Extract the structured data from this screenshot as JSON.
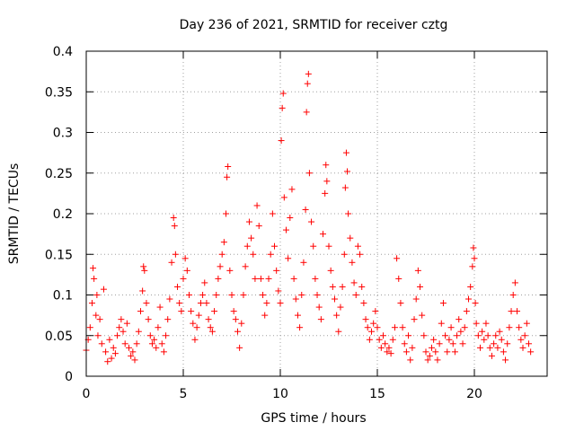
{
  "chart_data": {
    "type": "scatter",
    "title": "Day 236 of 2021, SRMTID for receiver cztg",
    "xlabel": "GPS time / hours",
    "ylabel": "SRMTID / TECUs",
    "xlim": [
      0,
      23.75
    ],
    "ylim": [
      0,
      0.4
    ],
    "x_ticks": [
      0,
      5,
      10,
      15,
      20
    ],
    "x_tick_labels": [
      "0",
      "5",
      "10",
      "15",
      "20"
    ],
    "y_ticks": [
      0,
      0.05,
      0.1,
      0.15,
      0.2,
      0.25,
      0.3,
      0.35,
      0.4
    ],
    "y_tick_labels": [
      "0",
      "0.05",
      "0.1",
      "0.15",
      "0.2",
      "0.25",
      "0.3",
      "0.35",
      "0.4"
    ],
    "grid": true,
    "marker": "plus",
    "series_color": "#ff0000",
    "series": [
      {
        "name": "SRMTID",
        "points": [
          [
            0.0,
            0.032
          ],
          [
            0.1,
            0.045
          ],
          [
            0.2,
            0.06
          ],
          [
            0.3,
            0.09
          ],
          [
            0.35,
            0.133
          ],
          [
            0.4,
            0.12
          ],
          [
            0.5,
            0.075
          ],
          [
            0.55,
            0.1
          ],
          [
            0.6,
            0.05
          ],
          [
            0.7,
            0.07
          ],
          [
            0.8,
            0.04
          ],
          [
            0.9,
            0.107
          ],
          [
            1.0,
            0.03
          ],
          [
            1.1,
            0.018
          ],
          [
            1.2,
            0.045
          ],
          [
            1.3,
            0.022
          ],
          [
            1.4,
            0.035
          ],
          [
            1.5,
            0.028
          ],
          [
            1.6,
            0.05
          ],
          [
            1.7,
            0.06
          ],
          [
            1.8,
            0.07
          ],
          [
            1.9,
            0.055
          ],
          [
            2.0,
            0.04
          ],
          [
            2.1,
            0.065
          ],
          [
            2.2,
            0.035
          ],
          [
            2.3,
            0.025
          ],
          [
            2.4,
            0.03
          ],
          [
            2.5,
            0.02
          ],
          [
            2.6,
            0.04
          ],
          [
            2.7,
            0.055
          ],
          [
            2.8,
            0.08
          ],
          [
            2.9,
            0.105
          ],
          [
            2.95,
            0.135
          ],
          [
            3.0,
            0.13
          ],
          [
            3.1,
            0.09
          ],
          [
            3.2,
            0.07
          ],
          [
            3.3,
            0.05
          ],
          [
            3.4,
            0.04
          ],
          [
            3.5,
            0.045
          ],
          [
            3.6,
            0.035
          ],
          [
            3.7,
            0.06
          ],
          [
            3.8,
            0.085
          ],
          [
            3.9,
            0.04
          ],
          [
            4.0,
            0.03
          ],
          [
            4.1,
            0.05
          ],
          [
            4.2,
            0.07
          ],
          [
            4.3,
            0.095
          ],
          [
            4.4,
            0.14
          ],
          [
            4.5,
            0.195
          ],
          [
            4.55,
            0.185
          ],
          [
            4.6,
            0.15
          ],
          [
            4.7,
            0.11
          ],
          [
            4.8,
            0.09
          ],
          [
            4.9,
            0.08
          ],
          [
            5.0,
            0.12
          ],
          [
            5.1,
            0.145
          ],
          [
            5.2,
            0.13
          ],
          [
            5.3,
            0.1
          ],
          [
            5.4,
            0.08
          ],
          [
            5.5,
            0.065
          ],
          [
            5.6,
            0.045
          ],
          [
            5.7,
            0.06
          ],
          [
            5.8,
            0.075
          ],
          [
            5.9,
            0.09
          ],
          [
            6.0,
            0.1
          ],
          [
            6.1,
            0.115
          ],
          [
            6.2,
            0.09
          ],
          [
            6.3,
            0.07
          ],
          [
            6.4,
            0.06
          ],
          [
            6.5,
            0.055
          ],
          [
            6.6,
            0.08
          ],
          [
            6.7,
            0.1
          ],
          [
            6.8,
            0.12
          ],
          [
            6.9,
            0.135
          ],
          [
            7.0,
            0.15
          ],
          [
            7.1,
            0.165
          ],
          [
            7.2,
            0.2
          ],
          [
            7.25,
            0.245
          ],
          [
            7.3,
            0.258
          ],
          [
            7.4,
            0.13
          ],
          [
            7.5,
            0.1
          ],
          [
            7.6,
            0.08
          ],
          [
            7.7,
            0.07
          ],
          [
            7.8,
            0.055
          ],
          [
            7.9,
            0.035
          ],
          [
            8.0,
            0.065
          ],
          [
            8.1,
            0.1
          ],
          [
            8.2,
            0.135
          ],
          [
            8.3,
            0.16
          ],
          [
            8.4,
            0.19
          ],
          [
            8.5,
            0.17
          ],
          [
            8.6,
            0.15
          ],
          [
            8.7,
            0.12
          ],
          [
            8.8,
            0.21
          ],
          [
            8.9,
            0.185
          ],
          [
            9.0,
            0.12
          ],
          [
            9.1,
            0.1
          ],
          [
            9.2,
            0.075
          ],
          [
            9.3,
            0.09
          ],
          [
            9.4,
            0.12
          ],
          [
            9.5,
            0.15
          ],
          [
            9.6,
            0.2
          ],
          [
            9.7,
            0.16
          ],
          [
            9.8,
            0.13
          ],
          [
            9.9,
            0.105
          ],
          [
            10.0,
            0.09
          ],
          [
            10.05,
            0.29
          ],
          [
            10.1,
            0.33
          ],
          [
            10.15,
            0.348
          ],
          [
            10.2,
            0.22
          ],
          [
            10.3,
            0.18
          ],
          [
            10.4,
            0.145
          ],
          [
            10.5,
            0.195
          ],
          [
            10.6,
            0.23
          ],
          [
            10.7,
            0.12
          ],
          [
            10.8,
            0.095
          ],
          [
            10.9,
            0.075
          ],
          [
            11.0,
            0.06
          ],
          [
            11.1,
            0.1
          ],
          [
            11.2,
            0.14
          ],
          [
            11.3,
            0.205
          ],
          [
            11.35,
            0.325
          ],
          [
            11.4,
            0.36
          ],
          [
            11.45,
            0.372
          ],
          [
            11.5,
            0.25
          ],
          [
            11.6,
            0.19
          ],
          [
            11.7,
            0.16
          ],
          [
            11.8,
            0.12
          ],
          [
            11.9,
            0.1
          ],
          [
            12.0,
            0.085
          ],
          [
            12.1,
            0.07
          ],
          [
            12.2,
            0.175
          ],
          [
            12.3,
            0.225
          ],
          [
            12.35,
            0.26
          ],
          [
            12.4,
            0.24
          ],
          [
            12.5,
            0.16
          ],
          [
            12.6,
            0.13
          ],
          [
            12.7,
            0.11
          ],
          [
            12.8,
            0.095
          ],
          [
            12.9,
            0.075
          ],
          [
            13.0,
            0.055
          ],
          [
            13.1,
            0.085
          ],
          [
            13.2,
            0.11
          ],
          [
            13.3,
            0.15
          ],
          [
            13.35,
            0.232
          ],
          [
            13.4,
            0.275
          ],
          [
            13.45,
            0.252
          ],
          [
            13.5,
            0.2
          ],
          [
            13.6,
            0.17
          ],
          [
            13.7,
            0.14
          ],
          [
            13.8,
            0.115
          ],
          [
            13.9,
            0.1
          ],
          [
            14.0,
            0.16
          ],
          [
            14.1,
            0.15
          ],
          [
            14.2,
            0.11
          ],
          [
            14.3,
            0.09
          ],
          [
            14.4,
            0.07
          ],
          [
            14.5,
            0.06
          ],
          [
            14.6,
            0.045
          ],
          [
            14.7,
            0.055
          ],
          [
            14.8,
            0.065
          ],
          [
            14.9,
            0.08
          ],
          [
            15.0,
            0.06
          ],
          [
            15.1,
            0.045
          ],
          [
            15.2,
            0.035
          ],
          [
            15.3,
            0.05
          ],
          [
            15.4,
            0.04
          ],
          [
            15.5,
            0.03
          ],
          [
            15.6,
            0.035
          ],
          [
            15.7,
            0.028
          ],
          [
            15.8,
            0.045
          ],
          [
            15.9,
            0.06
          ],
          [
            16.0,
            0.145
          ],
          [
            16.1,
            0.12
          ],
          [
            16.2,
            0.09
          ],
          [
            16.3,
            0.06
          ],
          [
            16.4,
            0.04
          ],
          [
            16.5,
            0.03
          ],
          [
            16.6,
            0.05
          ],
          [
            16.7,
            0.02
          ],
          [
            16.8,
            0.035
          ],
          [
            16.9,
            0.07
          ],
          [
            17.0,
            0.095
          ],
          [
            17.1,
            0.13
          ],
          [
            17.2,
            0.11
          ],
          [
            17.3,
            0.075
          ],
          [
            17.4,
            0.05
          ],
          [
            17.5,
            0.03
          ],
          [
            17.6,
            0.02
          ],
          [
            17.7,
            0.025
          ],
          [
            17.8,
            0.035
          ],
          [
            17.9,
            0.045
          ],
          [
            18.0,
            0.03
          ],
          [
            18.1,
            0.02
          ],
          [
            18.2,
            0.04
          ],
          [
            18.3,
            0.065
          ],
          [
            18.4,
            0.09
          ],
          [
            18.5,
            0.05
          ],
          [
            18.6,
            0.03
          ],
          [
            18.7,
            0.045
          ],
          [
            18.8,
            0.06
          ],
          [
            18.9,
            0.04
          ],
          [
            19.0,
            0.03
          ],
          [
            19.1,
            0.05
          ],
          [
            19.2,
            0.07
          ],
          [
            19.3,
            0.055
          ],
          [
            19.4,
            0.04
          ],
          [
            19.5,
            0.06
          ],
          [
            19.6,
            0.08
          ],
          [
            19.7,
            0.095
          ],
          [
            19.8,
            0.11
          ],
          [
            19.9,
            0.135
          ],
          [
            19.95,
            0.158
          ],
          [
            20.0,
            0.145
          ],
          [
            20.05,
            0.09
          ],
          [
            20.1,
            0.065
          ],
          [
            20.2,
            0.05
          ],
          [
            20.3,
            0.035
          ],
          [
            20.4,
            0.055
          ],
          [
            20.5,
            0.045
          ],
          [
            20.6,
            0.065
          ],
          [
            20.7,
            0.05
          ],
          [
            20.8,
            0.035
          ],
          [
            20.9,
            0.025
          ],
          [
            21.0,
            0.04
          ],
          [
            21.1,
            0.05
          ],
          [
            21.2,
            0.035
          ],
          [
            21.3,
            0.055
          ],
          [
            21.4,
            0.045
          ],
          [
            21.5,
            0.03
          ],
          [
            21.6,
            0.02
          ],
          [
            21.7,
            0.04
          ],
          [
            21.8,
            0.06
          ],
          [
            21.9,
            0.08
          ],
          [
            22.0,
            0.1
          ],
          [
            22.1,
            0.115
          ],
          [
            22.2,
            0.08
          ],
          [
            22.3,
            0.06
          ],
          [
            22.4,
            0.045
          ],
          [
            22.5,
            0.035
          ],
          [
            22.6,
            0.05
          ],
          [
            22.7,
            0.065
          ],
          [
            22.8,
            0.04
          ],
          [
            22.9,
            0.03
          ]
        ]
      }
    ]
  }
}
